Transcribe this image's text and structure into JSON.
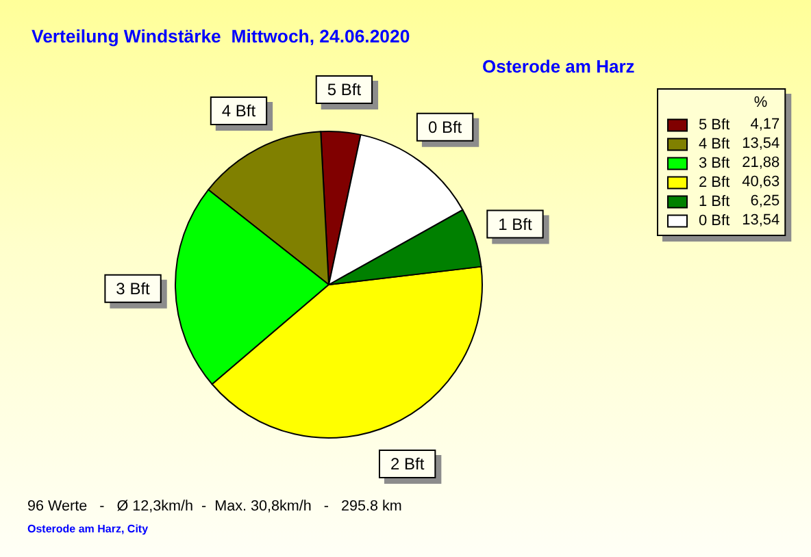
{
  "chart_data": {
    "type": "pie",
    "title": "Verteilung Windstärke  Mittwoch, 24.06.2020",
    "subtitle": "Osterode am Harz",
    "legend_title": "%",
    "categories": [
      "5 Bft",
      "4 Bft",
      "3 Bft",
      "2 Bft",
      "1 Bft",
      "0 Bft"
    ],
    "values": [
      4.17,
      13.54,
      21.88,
      40.63,
      6.25,
      13.54
    ],
    "value_labels": [
      "4,17",
      "13,54",
      "21,88",
      "40,63",
      "6,25",
      "13,54"
    ],
    "colors": [
      "#800000",
      "#808000",
      "#00ff00",
      "#ffff00",
      "#008000",
      "#ffffff"
    ],
    "legend": "top right",
    "annotations": [
      "96 Werte   -   Ø 12,3km/h  -  Max. 30,8km/h   -   295.8 km",
      "Osterode am Harz, City"
    ]
  }
}
